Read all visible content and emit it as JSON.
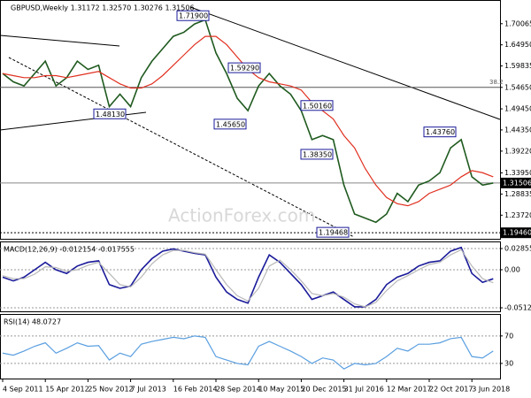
{
  "chart_data": [
    {
      "type": "line",
      "title": "GBPUSD,Weekly  1.31172 1.32570 1.30276 1.31506",
      "watermark": "ActionForex.com",
      "categories": [
        "4 Sep 2011",
        null,
        null,
        null,
        "15 Apr 2012",
        null,
        null,
        null,
        "25 Nov 2012",
        null,
        null,
        null,
        "7 Jul 2013",
        null,
        null,
        null,
        "16 Feb 2014",
        null,
        null,
        null,
        "28 Sep 2014",
        null,
        null,
        null,
        "10 May 2015",
        null,
        null,
        null,
        "20 Dec 2015",
        null,
        null,
        null,
        "31 Jul 2016",
        null,
        null,
        null,
        "12 Mar 2017",
        null,
        null,
        null,
        "22 Oct 2017",
        null,
        null,
        null,
        "3 Jun 2018",
        null,
        null
      ],
      "series": [
        {
          "color": "#1f5a1f",
          "values": [
            1.58,
            1.56,
            1.55,
            1.58,
            1.61,
            1.55,
            1.57,
            1.61,
            1.59,
            1.6,
            1.5,
            1.53,
            1.5,
            1.57,
            1.61,
            1.64,
            1.67,
            1.68,
            1.7,
            1.71,
            1.63,
            1.58,
            1.52,
            1.49,
            1.55,
            1.58,
            1.55,
            1.53,
            1.49,
            1.42,
            1.43,
            1.42,
            1.31,
            1.24,
            1.23,
            1.22,
            1.24,
            1.29,
            1.27,
            1.31,
            1.32,
            1.34,
            1.4,
            1.42,
            1.33,
            1.31,
            1.31506
          ]
        },
        {
          "color": "#e03020",
          "values": [
            1.58,
            1.575,
            1.57,
            1.57,
            1.575,
            1.575,
            1.57,
            1.575,
            1.58,
            1.585,
            1.57,
            1.555,
            1.545,
            1.545,
            1.555,
            1.575,
            1.6,
            1.625,
            1.65,
            1.67,
            1.67,
            1.65,
            1.62,
            1.59,
            1.57,
            1.56,
            1.555,
            1.55,
            1.54,
            1.51,
            1.49,
            1.47,
            1.43,
            1.4,
            1.35,
            1.31,
            1.28,
            1.265,
            1.26,
            1.27,
            1.29,
            1.3,
            1.31,
            1.33,
            1.345,
            1.34,
            1.33
          ]
        }
      ],
      "ylim": [
        1.18,
        1.758
      ],
      "yticks": [
        1.70065,
        {
          "value": 1.6495,
          "label": "1.64950"
        },
        1.59835,
        {
          "value": 1.5465,
          "label": "1.54650"
        },
        {
          "value": 1.4945,
          "label": "1.49450"
        },
        {
          "value": 1.4435,
          "label": "1.44350"
        },
        {
          "value": 1.3922,
          "label": "1.39220"
        },
        {
          "value": 1.3395,
          "label": "1.33950"
        },
        1.28835,
        {
          "value": 1.2372,
          "label": "1.23720"
        }
      ],
      "annotations": [
        {
          "value": 1.719,
          "label": "1.71900"
        },
        {
          "value": 1.5929,
          "label": "1.59290"
        },
        {
          "value": 1.4565,
          "label": "1.45650"
        },
        {
          "value": 1.5016,
          "label": "1.50160"
        },
        {
          "value": 1.4813,
          "label": "1.48130"
        },
        {
          "value": 1.3835,
          "label": "1.38350"
        },
        {
          "value": 1.4376,
          "label": "1.43760"
        },
        {
          "value": 1.19468,
          "label": "1.19468"
        }
      ],
      "levels": [
        {
          "value": 1.5465,
          "label": "38.2"
        }
      ],
      "price_marks": [
        1.31506,
        {
          "value": 1.1946,
          "label": "1.19460"
        }
      ]
    },
    {
      "type": "line",
      "title": "MACD(12,26,9) -0.012154 -0.017555",
      "series": [
        {
          "color": "#1a1a9a",
          "values": [
            -0.01,
            -0.015,
            -0.01,
            0.0,
            0.01,
            0.0,
            -0.005,
            0.005,
            0.01,
            0.012,
            -0.02,
            -0.025,
            -0.022,
            0.0,
            0.015,
            0.025,
            0.028,
            0.025,
            0.022,
            0.02,
            -0.01,
            -0.03,
            -0.04,
            -0.045,
            -0.01,
            0.02,
            0.01,
            -0.005,
            -0.02,
            -0.04,
            -0.035,
            -0.03,
            -0.04,
            -0.05,
            -0.05,
            -0.04,
            -0.02,
            -0.01,
            -0.005,
            0.005,
            0.01,
            0.012,
            0.025,
            0.03,
            -0.005,
            -0.017,
            -0.012154
          ]
        },
        {
          "color": "#b8b8b8",
          "values": [
            -0.008,
            -0.012,
            -0.012,
            -0.006,
            0.004,
            0.003,
            -0.002,
            0.0,
            0.006,
            0.01,
            -0.005,
            -0.02,
            -0.023,
            -0.01,
            0.008,
            0.02,
            0.026,
            0.026,
            0.023,
            0.021,
            0.0,
            -0.02,
            -0.035,
            -0.042,
            -0.025,
            0.005,
            0.013,
            0.0,
            -0.015,
            -0.032,
            -0.035,
            -0.032,
            -0.037,
            -0.046,
            -0.05,
            -0.044,
            -0.028,
            -0.015,
            -0.008,
            0.0,
            0.007,
            0.01,
            0.02,
            0.027,
            0.005,
            -0.012,
            -0.017555
          ]
        }
      ],
      "ylim": [
        -0.056,
        0.0381
      ],
      "yticks": [
        0.02855,
        {
          "value": 0,
          "label": "0.00"
        },
        -0.05124
      ]
    },
    {
      "type": "line",
      "title": "RSI(14) 48.0727",
      "series": [
        {
          "color": "#5a9fe0",
          "values": [
            45,
            42,
            48,
            55,
            60,
            45,
            52,
            60,
            55,
            56,
            35,
            45,
            40,
            58,
            62,
            65,
            68,
            66,
            70,
            68,
            40,
            35,
            30,
            28,
            55,
            62,
            55,
            48,
            40,
            30,
            38,
            35,
            22,
            30,
            28,
            30,
            40,
            52,
            48,
            58,
            58,
            60,
            66,
            68,
            40,
            38,
            48.0727
          ]
        }
      ],
      "ylim": [
        8,
        102
      ],
      "yticks": [
        70,
        30
      ]
    }
  ]
}
